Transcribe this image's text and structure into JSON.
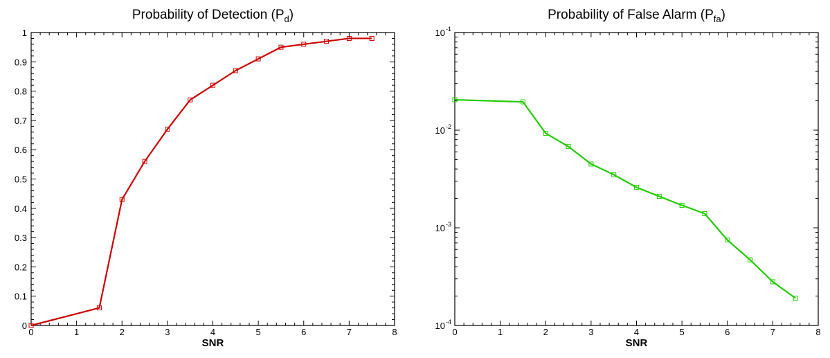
{
  "chart_data": [
    {
      "type": "line",
      "title_main": "Probability of Detection (P",
      "title_sub": "d",
      "title_end": ")",
      "xlabel": "SNR",
      "ylabel": "",
      "xlim": [
        0,
        8
      ],
      "ylim": [
        0,
        1
      ],
      "yscale": "linear",
      "xticks": [
        0,
        1,
        2,
        3,
        4,
        5,
        6,
        7,
        8
      ],
      "yticks": [
        0,
        0.1,
        0.2,
        0.3,
        0.4,
        0.5,
        0.6,
        0.7,
        0.8,
        0.9,
        1
      ],
      "ytick_labels": [
        "0",
        "0.1",
        "0.2",
        "0.3",
        "0.4",
        "0.5",
        "0.6",
        "0.7",
        "0.8",
        "0.9",
        "1"
      ],
      "grid": false,
      "series": [
        {
          "color": "#cc0000",
          "marker": "square",
          "x": [
            0,
            1.5,
            2,
            2.5,
            3,
            3.5,
            4,
            4.5,
            5,
            5.5,
            6,
            6.5,
            7,
            7.5
          ],
          "y": [
            0.0,
            0.06,
            0.43,
            0.56,
            0.67,
            0.77,
            0.82,
            0.87,
            0.91,
            0.95,
            0.96,
            0.97,
            0.98,
            0.98
          ]
        }
      ]
    },
    {
      "type": "line",
      "title_main": "Probability of False Alarm (P",
      "title_sub": "fa",
      "title_end": ")",
      "xlabel": "SNR",
      "ylabel": "",
      "xlim": [
        0,
        8
      ],
      "ylim": [
        0.0001,
        0.1
      ],
      "yscale": "log",
      "xticks": [
        0,
        1,
        2,
        3,
        4,
        5,
        6,
        7,
        8
      ],
      "yticks": [
        0.0001,
        0.001,
        0.01,
        0.1
      ],
      "ytick_exponents": [
        "-4",
        "-3",
        "-2",
        "-1"
      ],
      "ytick_base": "10",
      "grid": false,
      "series": [
        {
          "color": "#22cc00",
          "marker": "square",
          "x": [
            0,
            1.5,
            2,
            2.5,
            3,
            3.5,
            4,
            4.5,
            5,
            5.5,
            6,
            6.5,
            7,
            7.5
          ],
          "y": [
            0.0205,
            0.0195,
            0.0093,
            0.0068,
            0.0045,
            0.0035,
            0.0026,
            0.0021,
            0.0017,
            0.0014,
            0.00075,
            0.00047,
            0.00028,
            0.00019
          ]
        }
      ]
    }
  ]
}
